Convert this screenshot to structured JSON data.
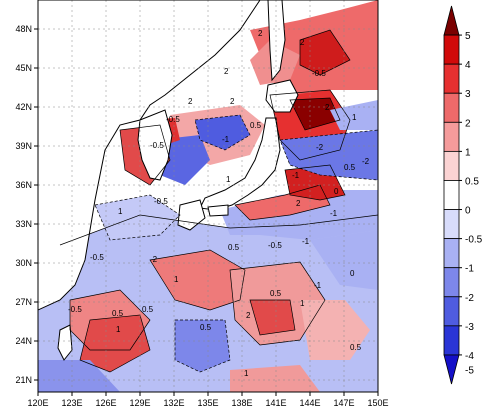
{
  "map": {
    "lon_ticks": [
      "120E",
      "123E",
      "126E",
      "129E",
      "132E",
      "135E",
      "138E",
      "141E",
      "144E",
      "147E",
      "150E"
    ],
    "lat_ticks": [
      "48N",
      "45N",
      "42N",
      "39N",
      "36N",
      "33N",
      "30N",
      "27N",
      "24N",
      "21N"
    ]
  },
  "colorbar": {
    "levels": [
      "5",
      "4",
      "3",
      "2",
      "1",
      "0.5",
      "0",
      "-0.5",
      "-1",
      "-2",
      "-3",
      "-4",
      "-5"
    ],
    "colors": [
      "#7a0000",
      "#d10a0a",
      "#e63030",
      "#ee6a6a",
      "#f59b9b",
      "#fbd3d3",
      "#ffffff",
      "#d8dcfb",
      "#a9b1f3",
      "#7d87ea",
      "#4f5ce0",
      "#2a35d6",
      "#1410c8"
    ]
  },
  "contour_labels": [
    "2",
    "2",
    "-0.5",
    "2",
    "2",
    "2",
    "2",
    "1",
    "-0.5",
    "0.5",
    "-1",
    "-2",
    "0.5",
    "-0.5",
    "-1",
    "-2",
    "-0.5",
    "0",
    "1",
    "2",
    "-1",
    "1",
    "-0.5",
    "-0.5",
    "-1",
    "1",
    "0.5",
    "0",
    "-2",
    "-1",
    "0.5",
    "1",
    "2",
    "0.5",
    "1",
    "0.5",
    "-0.5",
    "0.5",
    "0.5",
    "1"
  ]
}
